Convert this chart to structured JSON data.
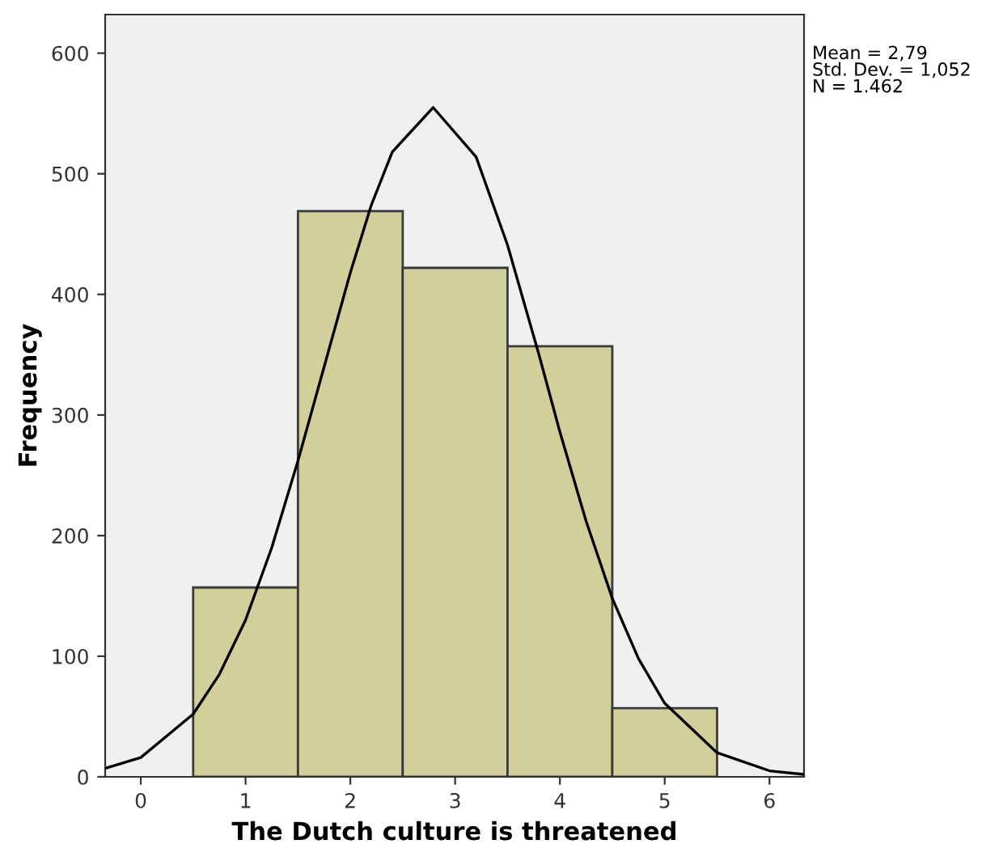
{
  "chart_data": {
    "type": "histogram",
    "xlabel": "The Dutch culture is threatened",
    "ylabel": "Frequency",
    "bins": [
      0.5,
      1.5,
      2.5,
      3.5,
      4.5,
      5.5
    ],
    "values": [
      157,
      469,
      422,
      357,
      57
    ],
    "color": "#d3cf9b",
    "series": [
      {
        "type": "line",
        "color": "#000000",
        "x": [
          -0.34,
          0,
          0.5,
          0.75,
          1,
          1.25,
          1.5,
          1.75,
          2,
          2.2,
          2.4,
          2.79,
          3.2,
          3.5,
          3.8,
          4,
          4.25,
          4.5,
          4.75,
          5,
          5.5,
          6,
          6.33
        ],
        "values": [
          7,
          16,
          52,
          85,
          130,
          190,
          262,
          340,
          418,
          474,
          518,
          555,
          514,
          441,
          350,
          286,
          212,
          148,
          98,
          61,
          20,
          5,
          2
        ]
      }
    ],
    "xlim": [
      -0.34,
      6.33
    ],
    "xticks": [
      0,
      1,
      2,
      3,
      4,
      5,
      6
    ],
    "ylim": [
      0,
      632
    ],
    "yticks": [
      0,
      100,
      200,
      300,
      400,
      500,
      600
    ],
    "grid": false,
    "annotations": [
      "Mean = 2,79\nStd. Dev. = 1,052\nN = 1.462"
    ]
  }
}
